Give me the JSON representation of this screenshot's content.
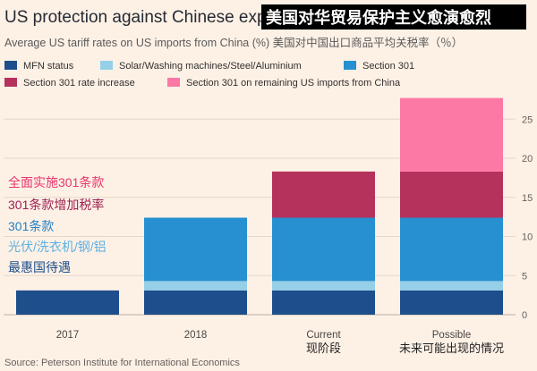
{
  "chart_data": {
    "type": "bar",
    "stacked": true,
    "title": "US protection against Chinese exports",
    "title_cn": "美国对华贸易保护主义愈演愈烈",
    "subtitle": "Average US tariff rates on US imports from China (%) 美国对中国出口商品平均关税率（％）",
    "categories": [
      "2017",
      "2018",
      "Current",
      "Possible"
    ],
    "categories_cn": [
      "",
      "",
      "现阶段",
      "未来可能出现的情况"
    ],
    "series": [
      {
        "name": "MFN status",
        "color": "#1f4e8c",
        "values": [
          3.1,
          3.1,
          3.1,
          3.1
        ]
      },
      {
        "name": "Solar/Washing machines/Steel/Aluminium",
        "color": "#96cfe8",
        "values": [
          0,
          1.2,
          1.2,
          1.2
        ]
      },
      {
        "name": "Section 301",
        "color": "#2690d0",
        "values": [
          0,
          8.1,
          8.1,
          8.1
        ]
      },
      {
        "name": "Section 301 rate increase",
        "color": "#b5325d",
        "values": [
          0,
          0,
          5.9,
          5.9
        ]
      },
      {
        "name": "Section 301 on remaining US imports from China",
        "color": "#fc79a6",
        "values": [
          0,
          0,
          0,
          9.4
        ]
      }
    ],
    "yticks": [
      0,
      5,
      10,
      15,
      20,
      25
    ],
    "ylim": [
      0,
      28
    ],
    "legend_position": "top",
    "annotations": [
      {
        "text": "全面实施301条款",
        "color": "#e8356f"
      },
      {
        "text": "301条款增加税率",
        "color": "#9e2050"
      },
      {
        "text": "301条款",
        "color": "#2680c2"
      },
      {
        "text": "光伏/洗衣机/钢/铝",
        "color": "#5fb0e0"
      },
      {
        "text": "最惠国待遇",
        "color": "#1f4e8c"
      }
    ],
    "source": "Source: Peterson Institute for International Economics"
  }
}
